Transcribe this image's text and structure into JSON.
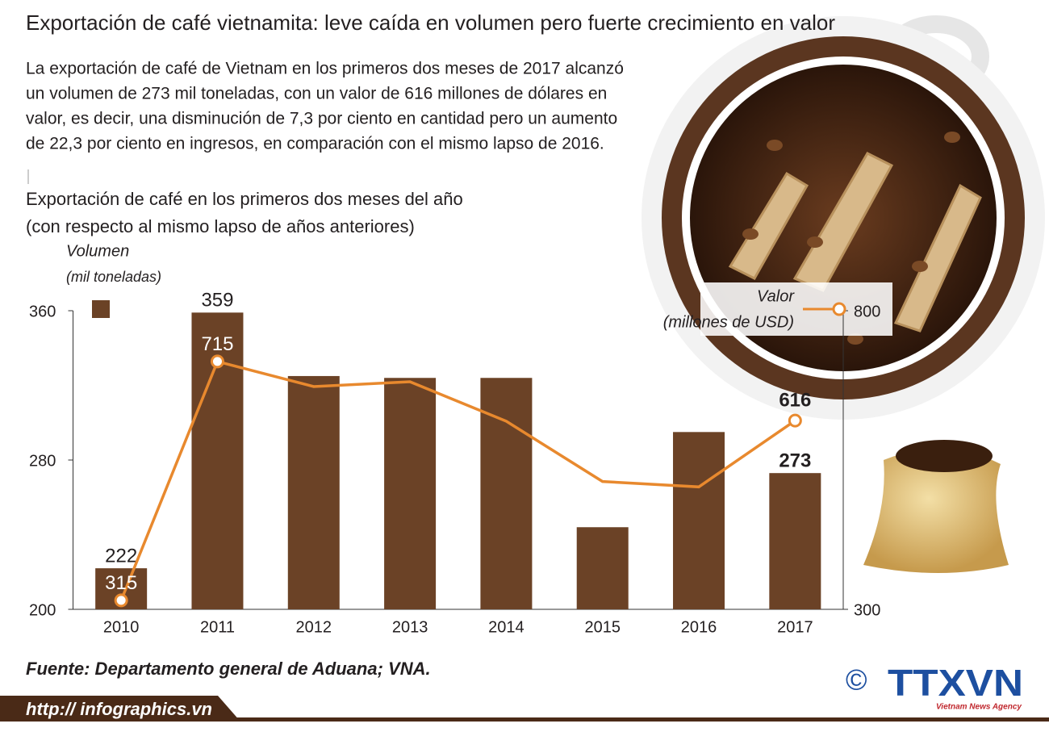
{
  "header": {
    "title": "Exportación de café vietnamita: leve caída en volumen pero fuerte crecimiento en valor",
    "paragraph": [
      "La exportación de café de Vietnam en los primeros dos meses de 2017 alcanzó",
      "un volumen de 273 mil toneladas, con un valor de 616 millones de dólares en",
      "valor, es decir, una disminución de 7,3 por ciento en cantidad pero un aumento",
      "de 22,3 por ciento en ingresos, en comparación con el mismo lapso de 2016."
    ]
  },
  "chart_data": {
    "type": "bar",
    "title": "Exportación de café en los primeros dos meses del año",
    "subtitle": "(con respecto al mismo lapso de años anteriores)",
    "categories": [
      "2010",
      "2011",
      "2012",
      "2013",
      "2014",
      "2015",
      "2016",
      "2017"
    ],
    "series": [
      {
        "name": "Volumen",
        "unit": "(mil toneladas)",
        "type": "bar",
        "color": "#6b4226",
        "values": [
          222,
          359,
          325,
          324,
          324,
          244,
          295,
          273
        ],
        "value_labels": [
          "222",
          "359",
          null,
          null,
          null,
          null,
          null,
          "273"
        ]
      },
      {
        "name": "Valor",
        "unit": "(millones de USD)",
        "type": "line",
        "axis": "y2",
        "color": "#e8892e",
        "values": [
          315,
          715,
          673,
          681,
          615,
          514,
          505,
          616
        ],
        "value_labels": [
          "315",
          "715",
          null,
          null,
          null,
          null,
          null,
          "616"
        ]
      }
    ],
    "ylim": [
      200,
      360
    ],
    "yticks": [
      200,
      280,
      360
    ],
    "y2lim": [
      300,
      800
    ],
    "y2ticks": [
      300,
      800
    ]
  },
  "footer": {
    "source": "Fuente: Departamento general de Aduana; VNA.",
    "url": "http:// infographics.vn",
    "copyright": "©",
    "logo": "TTXVN",
    "agency": "Vietnam News Agency"
  }
}
